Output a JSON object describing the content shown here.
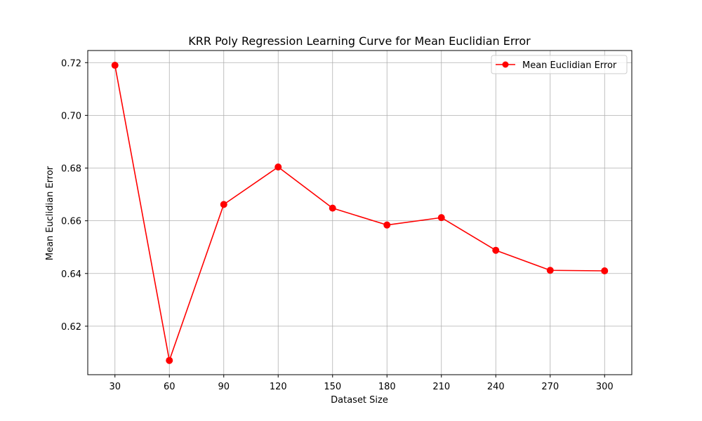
{
  "chart_data": {
    "type": "line",
    "title": "KRR Poly Regression Learning Curve for Mean Euclidian Error",
    "xlabel": "Dataset Size",
    "ylabel": "Mean Euclidian Error",
    "x": [
      30,
      60,
      90,
      120,
      150,
      180,
      210,
      240,
      270,
      300
    ],
    "x_tick_labels": [
      "30",
      "60",
      "90",
      "120",
      "150",
      "180",
      "210",
      "240",
      "270",
      "300"
    ],
    "y_ticks": [
      0.62,
      0.64,
      0.66,
      0.68,
      0.7,
      0.72
    ],
    "y_tick_labels": [
      "0.62",
      "0.64",
      "0.66",
      "0.68",
      "0.70",
      "0.72"
    ],
    "xlim": [
      15,
      315
    ],
    "ylim": [
      0.6016,
      0.7246
    ],
    "grid": true,
    "legend_position": "top-right",
    "series": [
      {
        "name": "Mean Euclidian Error",
        "color": "#ff0000",
        "marker": "circle",
        "values": [
          0.719,
          0.607,
          0.6662,
          0.6804,
          0.6648,
          0.6584,
          0.6612,
          0.6488,
          0.6412,
          0.641
        ]
      }
    ]
  }
}
